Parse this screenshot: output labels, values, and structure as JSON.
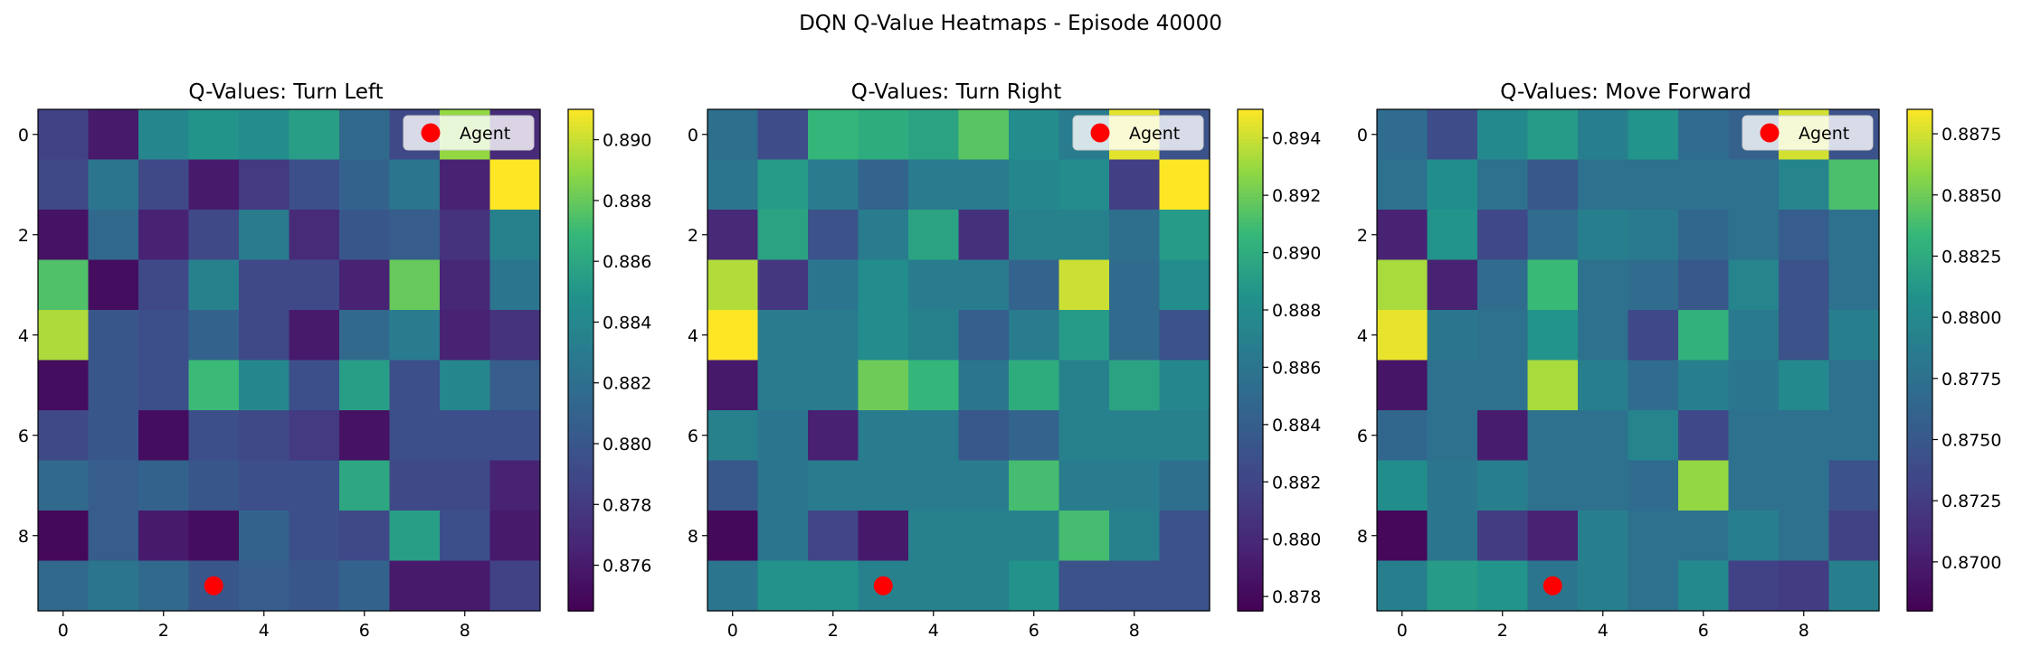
{
  "suptitle": "DQN Q-Value Heatmaps - Episode 40000",
  "colors": {
    "agent_marker": "#ff0000",
    "colormap": "viridis",
    "legend_bg": "#ffffff",
    "legend_edge": "#cccccc"
  },
  "chart_data": [
    {
      "type": "heatmap",
      "title": "Q-Values: Turn Left",
      "legend": {
        "label": "Agent",
        "placement": "top-right"
      },
      "agent": {
        "x": 3,
        "y": 9
      },
      "x_ticks": [
        "0",
        "2",
        "4",
        "6",
        "8"
      ],
      "y_ticks": [
        "0",
        "2",
        "4",
        "6",
        "8"
      ],
      "colorbar": {
        "vmin": 0.8745,
        "vmax": 0.891,
        "ticks": [
          0.876,
          0.878,
          0.88,
          0.882,
          0.884,
          0.886,
          0.888,
          0.89
        ],
        "tick_labels": [
          "0.876",
          "0.878",
          "0.880",
          "0.882",
          "0.884",
          "0.886",
          "0.888",
          "0.890"
        ]
      },
      "values": [
        [
          0.8785,
          0.876,
          0.884,
          0.885,
          0.8845,
          0.8855,
          0.8815,
          0.879,
          0.889,
          0.877
        ],
        [
          0.879,
          0.8825,
          0.879,
          0.876,
          0.878,
          0.8795,
          0.881,
          0.8825,
          0.8765,
          0.891
        ],
        [
          0.8755,
          0.8815,
          0.8765,
          0.879,
          0.883,
          0.877,
          0.88,
          0.8805,
          0.8775,
          0.8835
        ],
        [
          0.8875,
          0.8752,
          0.879,
          0.8835,
          0.879,
          0.879,
          0.8765,
          0.888,
          0.8768,
          0.8825
        ],
        [
          0.8895,
          0.88,
          0.8795,
          0.881,
          0.879,
          0.876,
          0.8815,
          0.883,
          0.8765,
          0.8775
        ],
        [
          0.8752,
          0.88,
          0.8795,
          0.887,
          0.884,
          0.8795,
          0.8855,
          0.8795,
          0.884,
          0.8805
        ],
        [
          0.879,
          0.88,
          0.8752,
          0.8795,
          0.879,
          0.878,
          0.8755,
          0.8795,
          0.8795,
          0.8795
        ],
        [
          0.8815,
          0.8805,
          0.881,
          0.88,
          0.8795,
          0.8795,
          0.886,
          0.879,
          0.879,
          0.8765
        ],
        [
          0.875,
          0.8805,
          0.876,
          0.8752,
          0.881,
          0.8795,
          0.879,
          0.8855,
          0.8795,
          0.876
        ],
        [
          0.8815,
          0.8825,
          0.8815,
          0.88,
          0.8805,
          0.88,
          0.881,
          0.876,
          0.876,
          0.8785
        ]
      ]
    },
    {
      "type": "heatmap",
      "title": "Q-Values: Turn Right",
      "legend": {
        "label": "Agent",
        "placement": "top-right"
      },
      "agent": {
        "x": 3,
        "y": 9
      },
      "x_ticks": [
        "0",
        "2",
        "4",
        "6",
        "8"
      ],
      "y_ticks": [
        "0",
        "2",
        "4",
        "6",
        "8"
      ],
      "colorbar": {
        "vmin": 0.8775,
        "vmax": 0.895,
        "ticks": [
          0.878,
          0.88,
          0.882,
          0.884,
          0.886,
          0.888,
          0.89,
          0.892,
          0.894
        ],
        "tick_labels": [
          "0.878",
          "0.880",
          "0.882",
          "0.884",
          "0.886",
          "0.888",
          "0.890",
          "0.892",
          "0.894"
        ]
      },
      "values": [
        [
          0.8855,
          0.8825,
          0.8905,
          0.89,
          0.8895,
          0.8915,
          0.888,
          0.8865,
          0.8945,
          0.883
        ],
        [
          0.886,
          0.889,
          0.8865,
          0.8845,
          0.8865,
          0.8865,
          0.8875,
          0.888,
          0.8815,
          0.895
        ],
        [
          0.88,
          0.8895,
          0.883,
          0.8865,
          0.8895,
          0.8805,
          0.887,
          0.887,
          0.8855,
          0.889
        ],
        [
          0.8935,
          0.881,
          0.886,
          0.888,
          0.8865,
          0.8865,
          0.8845,
          0.894,
          0.885,
          0.888
        ],
        [
          0.895,
          0.8865,
          0.8865,
          0.888,
          0.887,
          0.884,
          0.8865,
          0.889,
          0.885,
          0.883
        ],
        [
          0.879,
          0.8865,
          0.8865,
          0.892,
          0.8905,
          0.886,
          0.89,
          0.887,
          0.8895,
          0.8875
        ],
        [
          0.887,
          0.886,
          0.8795,
          0.8865,
          0.8865,
          0.8835,
          0.8845,
          0.887,
          0.887,
          0.887
        ],
        [
          0.8835,
          0.886,
          0.8865,
          0.8865,
          0.8865,
          0.8865,
          0.891,
          0.8865,
          0.8865,
          0.8855
        ],
        [
          0.878,
          0.886,
          0.882,
          0.879,
          0.887,
          0.887,
          0.887,
          0.891,
          0.887,
          0.883
        ],
        [
          0.886,
          0.8885,
          0.8885,
          0.887,
          0.887,
          0.887,
          0.8885,
          0.883,
          0.883,
          0.883
        ]
      ]
    },
    {
      "type": "heatmap",
      "title": "Q-Values: Move Forward",
      "legend": {
        "label": "Agent",
        "placement": "top-right"
      },
      "agent": {
        "x": 3,
        "y": 9
      },
      "x_ticks": [
        "0",
        "2",
        "4",
        "6",
        "8"
      ],
      "y_ticks": [
        "0",
        "2",
        "4",
        "6",
        "8"
      ],
      "colorbar": {
        "vmin": 0.868,
        "vmax": 0.8885,
        "ticks": [
          0.87,
          0.8725,
          0.875,
          0.8775,
          0.88,
          0.8825,
          0.885,
          0.8875
        ],
        "tick_labels": [
          "0.8700",
          "0.8725",
          "0.8750",
          "0.8775",
          "0.8800",
          "0.8825",
          "0.8850",
          "0.8875"
        ]
      },
      "values": [
        [
          0.877,
          0.874,
          0.88,
          0.8815,
          0.879,
          0.881,
          0.877,
          0.876,
          0.8875,
          0.8745
        ],
        [
          0.8775,
          0.8805,
          0.8775,
          0.875,
          0.8775,
          0.8775,
          0.8775,
          0.8775,
          0.8795,
          0.884
        ],
        [
          0.8705,
          0.881,
          0.8735,
          0.877,
          0.879,
          0.8785,
          0.8765,
          0.8775,
          0.8755,
          0.8775
        ],
        [
          0.8865,
          0.8705,
          0.877,
          0.8835,
          0.8775,
          0.877,
          0.875,
          0.8795,
          0.8745,
          0.8775
        ],
        [
          0.888,
          0.878,
          0.8775,
          0.881,
          0.8775,
          0.8735,
          0.883,
          0.8785,
          0.8745,
          0.879
        ],
        [
          0.8695,
          0.8775,
          0.8775,
          0.8865,
          0.879,
          0.877,
          0.879,
          0.878,
          0.88,
          0.8775
        ],
        [
          0.8765,
          0.8775,
          0.87,
          0.8775,
          0.8775,
          0.8795,
          0.8735,
          0.8775,
          0.8775,
          0.8775
        ],
        [
          0.8805,
          0.878,
          0.879,
          0.8775,
          0.8775,
          0.877,
          0.886,
          0.8775,
          0.8775,
          0.8745
        ],
        [
          0.8685,
          0.878,
          0.8725,
          0.8705,
          0.879,
          0.8775,
          0.8775,
          0.879,
          0.8775,
          0.873
        ],
        [
          0.879,
          0.8815,
          0.881,
          0.878,
          0.879,
          0.8775,
          0.88,
          0.873,
          0.8725,
          0.879
        ]
      ]
    }
  ]
}
